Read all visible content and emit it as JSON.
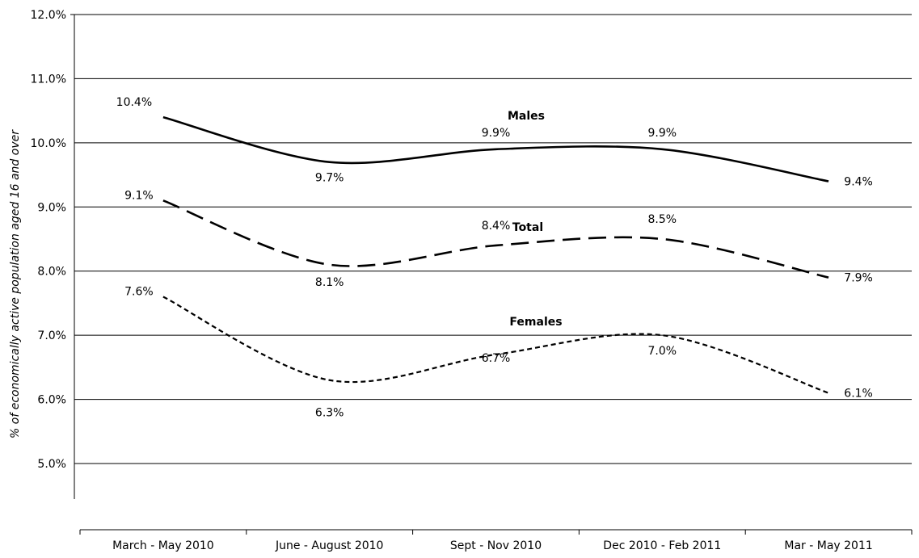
{
  "chart_data": {
    "type": "line",
    "title": "",
    "xlabel": "",
    "ylabel": "% of economically active population aged 16 and over",
    "categories": [
      "March - May 2010",
      "June - August 2010",
      "Sept - Nov 2010",
      "Dec 2010 - Feb 2011",
      "Mar - May 2011"
    ],
    "y_ticks": [
      "12.0%",
      "11.0%",
      "10.0%",
      "9.0%",
      "8.0%",
      "7.0%",
      "6.0%",
      "5.0%"
    ],
    "ylim": [
      5,
      12
    ],
    "grid": true,
    "legend": "none (series labelled directly on the lines)",
    "series": [
      {
        "name": "Males",
        "values": [
          10.4,
          9.7,
          9.9,
          9.9,
          9.4
        ],
        "labels": [
          "10.4%",
          "9.7%",
          "9.9%",
          "9.9%",
          "9.4%"
        ],
        "line_style": "solid",
        "color": "#000000"
      },
      {
        "name": "Total",
        "values": [
          9.1,
          8.1,
          8.4,
          8.5,
          7.9
        ],
        "labels": [
          "9.1%",
          "8.1%",
          "8.4%",
          "8.5%",
          "7.9%"
        ],
        "line_style": "long-dash",
        "color": "#000000"
      },
      {
        "name": "Females",
        "values": [
          7.6,
          6.3,
          6.7,
          7.0,
          6.1
        ],
        "labels": [
          "7.6%",
          "6.3%",
          "6.7%",
          "7.0%",
          "6.1%"
        ],
        "line_style": "short-dash",
        "color": "#000000"
      }
    ]
  }
}
